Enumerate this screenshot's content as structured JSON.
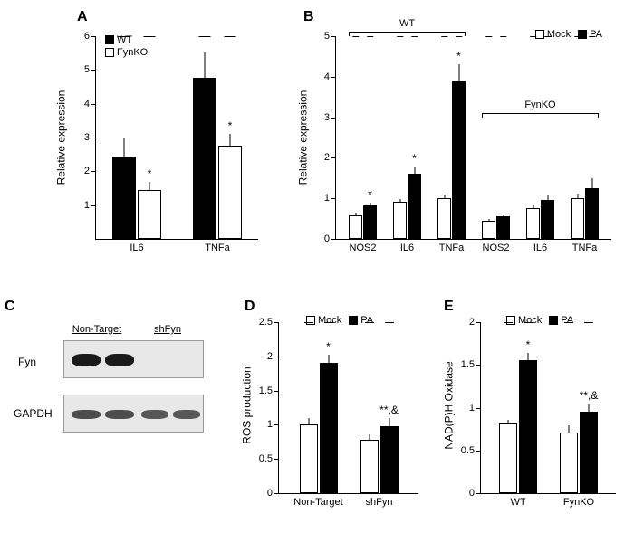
{
  "panelA": {
    "label": "A",
    "yAxisLabel": "Relative expression",
    "yMax": 6,
    "yTicks": [
      1,
      2,
      3,
      4,
      5,
      6
    ],
    "categories": [
      "IL6",
      "TNFa"
    ],
    "legend": [
      {
        "label": "WT",
        "fill": "#000000"
      },
      {
        "label": "FynKO",
        "fill": "#ffffff"
      }
    ],
    "series": [
      {
        "name": "WT",
        "values": [
          2.45,
          4.78
        ],
        "errors": [
          0.55,
          0.75
        ],
        "color": "#000000"
      },
      {
        "name": "FynKO",
        "values": [
          1.45,
          2.75
        ],
        "errors": [
          0.25,
          0.35
        ],
        "color": "#ffffff",
        "stars": [
          "*",
          "*"
        ]
      }
    ],
    "barWidth": 26
  },
  "panelB": {
    "label": "B",
    "yAxisLabel": "Relative expression",
    "yMax": 5,
    "yTicks": [
      0,
      1,
      2,
      3,
      4,
      5
    ],
    "categories": [
      "NOS2",
      "IL6",
      "TNFa",
      "NOS2",
      "IL6",
      "TNFa"
    ],
    "brackets": [
      {
        "start": 0,
        "end": 2,
        "label": "WT"
      },
      {
        "start": 3,
        "end": 5,
        "label": "FynKO"
      }
    ],
    "legend": [
      {
        "label": "Mock",
        "fill": "#ffffff"
      },
      {
        "label": "PA",
        "fill": "#000000"
      }
    ],
    "series": [
      {
        "name": "Mock",
        "values": [
          0.58,
          0.92,
          1.0,
          0.45,
          0.75,
          1.0
        ],
        "errors": [
          0.06,
          0.07,
          0.1,
          0.04,
          0.08,
          0.12
        ],
        "color": "#ffffff"
      },
      {
        "name": "PA",
        "values": [
          0.82,
          1.6,
          3.9,
          0.55,
          0.95,
          1.25
        ],
        "errors": [
          0.07,
          0.18,
          0.4,
          0.04,
          0.12,
          0.25
        ],
        "color": "#000000",
        "stars": [
          "*",
          "*",
          "*",
          "",
          "",
          ""
        ]
      }
    ],
    "barWidth": 15
  },
  "panelC": {
    "label": "C",
    "headers": [
      "Non-Target",
      "shFyn"
    ],
    "rows": [
      "Fyn",
      "GAPDH"
    ]
  },
  "panelD": {
    "label": "D",
    "yAxisLabel": "ROS production",
    "yMax": 2.5,
    "yTicks": [
      0,
      0.5,
      1,
      1.5,
      2,
      2.5
    ],
    "categories": [
      "Non-Target",
      "shFyn"
    ],
    "legend": [
      {
        "label": "Mock",
        "fill": "#ffffff"
      },
      {
        "label": "PA",
        "fill": "#000000"
      }
    ],
    "series": [
      {
        "name": "Mock",
        "values": [
          1.0,
          0.78
        ],
        "errors": [
          0.1,
          0.08
        ],
        "color": "#ffffff"
      },
      {
        "name": "PA",
        "values": [
          1.9,
          0.98
        ],
        "errors": [
          0.12,
          0.12
        ],
        "color": "#000000",
        "stars": [
          "*",
          "**,&"
        ]
      }
    ],
    "barWidth": 20
  },
  "panelE": {
    "label": "E",
    "yAxisLabel": "NAD(P)H Oxidase",
    "yMax": 2,
    "yTicks": [
      0,
      0.5,
      1,
      1.5,
      2
    ],
    "categories": [
      "WT",
      "FynKO"
    ],
    "legend": [
      {
        "label": "Mock",
        "fill": "#ffffff"
      },
      {
        "label": "PA",
        "fill": "#000000"
      }
    ],
    "series": [
      {
        "name": "Mock",
        "values": [
          0.83,
          0.71
        ],
        "errors": [
          0.03,
          0.08
        ],
        "color": "#ffffff"
      },
      {
        "name": "PA",
        "values": [
          1.56,
          0.95
        ],
        "errors": [
          0.08,
          0.1
        ],
        "color": "#000000",
        "stars": [
          "*",
          "**,&"
        ]
      }
    ],
    "barWidth": 20
  }
}
